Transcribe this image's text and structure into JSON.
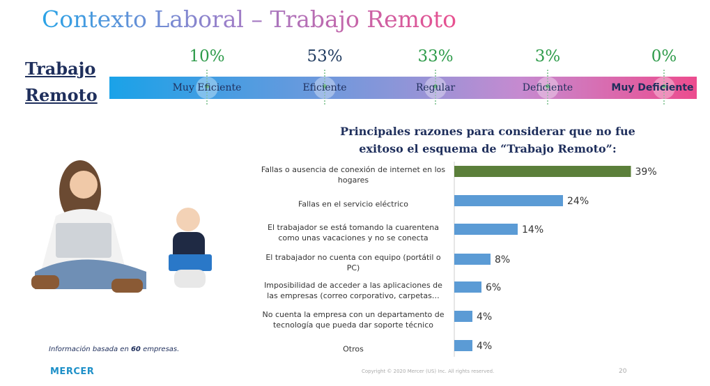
{
  "title": "Contexto Laboral – Trabajo Remoto",
  "scale": {
    "label": "Trabajo Remoto",
    "categories": [
      "Muy Eficiente",
      "Eficiente",
      "Regular",
      "Deficiente",
      "Muy Deficiente"
    ],
    "values": [
      10,
      53,
      33,
      3,
      0
    ],
    "value_labels": [
      "10%",
      "53%",
      "33%",
      "3%",
      "0%"
    ],
    "colors": [
      "#2e9b4a",
      "#1f3a5f",
      "#2e9b4a",
      "#2e9b4a",
      "#2e9b4a"
    ]
  },
  "chart_data": {
    "type": "bar",
    "orientation": "horizontal",
    "title": "Principales razones para considerar que no fue exitoso el esquema de “Trabajo Remoto”:",
    "categories": [
      "Fallas o ausencia de conexión de internet en los hogares",
      "Fallas en el servicio eléctrico",
      "El trabajador se está tomando la cuarentena como unas vacaciones y no se conecta",
      "El trabajador no cuenta con equipo (portátil o PC)",
      "Imposibilidad de acceder a las aplicaciones de las empresas (correo corporativo, carpetas…",
      "No cuenta la empresa con un departamento de tecnología que pueda dar soporte técnico",
      "Otros"
    ],
    "values": [
      39,
      24,
      14,
      8,
      6,
      4,
      4
    ],
    "value_labels": [
      "39%",
      "24%",
      "14%",
      "8%",
      "6%",
      "4%",
      "4%"
    ],
    "colors": [
      "#5b7f3a",
      "#5b9bd5",
      "#5b9bd5",
      "#5b9bd5",
      "#5b9bd5",
      "#5b9bd5",
      "#5b9bd5"
    ]
  },
  "note": [
    "Información basada en ",
    "60",
    " empresas."
  ],
  "footer": {
    "logo": "MERCER",
    "copyright": "Copyright © 2020 Mercer (US) Inc. All rights reserved.",
    "page": "20"
  }
}
